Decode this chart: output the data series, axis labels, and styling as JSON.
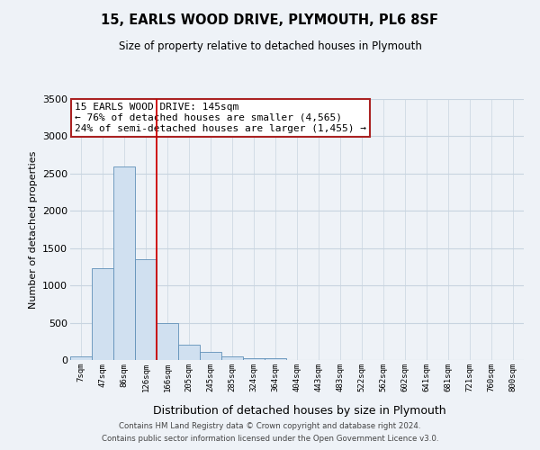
{
  "title": "15, EARLS WOOD DRIVE, PLYMOUTH, PL6 8SF",
  "subtitle": "Size of property relative to detached houses in Plymouth",
  "xlabel": "Distribution of detached houses by size in Plymouth",
  "ylabel": "Number of detached properties",
  "bar_labels": [
    "7sqm",
    "47sqm",
    "86sqm",
    "126sqm",
    "166sqm",
    "205sqm",
    "245sqm",
    "285sqm",
    "324sqm",
    "364sqm",
    "404sqm",
    "443sqm",
    "483sqm",
    "522sqm",
    "562sqm",
    "602sqm",
    "641sqm",
    "681sqm",
    "721sqm",
    "760sqm",
    "800sqm"
  ],
  "bar_values": [
    50,
    1230,
    2590,
    1350,
    490,
    200,
    110,
    50,
    30,
    30,
    0,
    0,
    0,
    0,
    0,
    0,
    0,
    0,
    0,
    0,
    0
  ],
  "bar_color": "#d0e0f0",
  "bar_edge_color": "#6090b8",
  "highlight_line_color": "#cc0000",
  "annotation_text": "15 EARLS WOOD DRIVE: 145sqm\n← 76% of detached houses are smaller (4,565)\n24% of semi-detached houses are larger (1,455) →",
  "annotation_box_color": "#ffffff",
  "annotation_box_edge": "#aa2222",
  "ylim": [
    0,
    3500
  ],
  "yticks": [
    0,
    500,
    1000,
    1500,
    2000,
    2500,
    3000,
    3500
  ],
  "grid_color": "#c8d4e0",
  "footer1": "Contains HM Land Registry data © Crown copyright and database right 2024.",
  "footer2": "Contains public sector information licensed under the Open Government Licence v3.0.",
  "background_color": "#eef2f7",
  "plot_bg_color": "#eef2f7"
}
